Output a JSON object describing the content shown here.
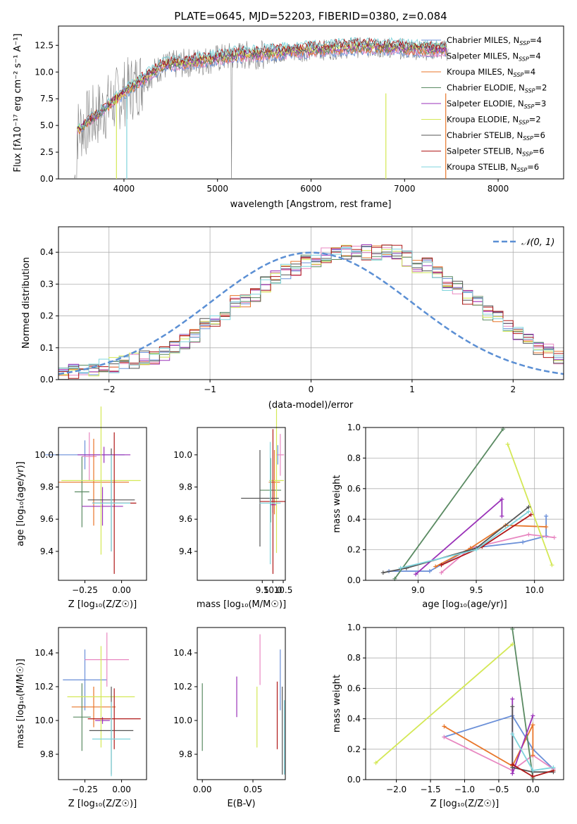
{
  "chart_data": [
    {
      "type": "line",
      "title": "PLATE=0645, MJD=52203, FIBERID=0380, z=0.084",
      "xlabel": "wavelength [Angstrom, rest frame]",
      "ylabel": "Flux [fλ10⁻¹⁷ erg cm⁻² s⁻¹ A⁻¹]",
      "xlim": [
        3300,
        8700
      ],
      "ylim": [
        0,
        14.3
      ],
      "xticks": [
        "4000",
        "5000",
        "6000",
        "7000",
        "8000"
      ],
      "yticks": [
        "0.0",
        "2.5",
        "5.0",
        "7.5",
        "10.0",
        "12.5"
      ],
      "legend_position": "right",
      "data_spectrum": {
        "name": "data",
        "color": "#808080"
      },
      "series": [
        {
          "name": "Chabrier MILES, N_SSP=4",
          "color": "#6a8fd8"
        },
        {
          "name": "Salpeter MILES, N_SSP=4",
          "color": "#e887c1"
        },
        {
          "name": "Kroupa MILES, N_SSP=4",
          "color": "#e8762a"
        },
        {
          "name": "Chabrier ELODIE, N_SSP=2",
          "color": "#5a8a62"
        },
        {
          "name": "Salpeter ELODIE, N_SSP=3",
          "color": "#9a32b8"
        },
        {
          "name": "Kroupa ELODIE, N_SSP=2",
          "color": "#d4e856"
        },
        {
          "name": "Chabrier STELIB, N_SSP=6",
          "color": "#555555"
        },
        {
          "name": "Salpeter STELIB, N_SSP=6",
          "color": "#b01818"
        },
        {
          "name": "Kroupa STELIB, N_SSP=6",
          "color": "#7fd4dc"
        }
      ],
      "legend_labels": [
        {
          "main": "Chabrier MILES, N",
          "sub": "SSP",
          "tail": "=4"
        },
        {
          "main": "Salpeter MILES, N",
          "sub": "SSP",
          "tail": "=4"
        },
        {
          "main": "Kroupa MILES, N",
          "sub": "SSP",
          "tail": "=4"
        },
        {
          "main": "Chabrier ELODIE, N",
          "sub": "SSP",
          "tail": "=2"
        },
        {
          "main": "Salpeter ELODIE, N",
          "sub": "SSP",
          "tail": "=3"
        },
        {
          "main": "Kroupa ELODIE, N",
          "sub": "SSP",
          "tail": "=2"
        },
        {
          "main": "Chabrier STELIB, N",
          "sub": "SSP",
          "tail": "=6"
        },
        {
          "main": "Salpeter STELIB, N",
          "sub": "SSP",
          "tail": "=6"
        },
        {
          "main": "Kroupa STELIB, N",
          "sub": "SSP",
          "tail": "=6"
        }
      ]
    },
    {
      "type": "histogram",
      "xlabel": "(data-model)/error",
      "ylabel": "Normed distribution",
      "xlim": [
        -2.5,
        2.5
      ],
      "ylim": [
        0,
        0.48
      ],
      "xticks": [
        "−2",
        "−1",
        "0",
        "1",
        "2"
      ],
      "yticks": [
        "0.0",
        "0.1",
        "0.2",
        "0.3",
        "0.4"
      ],
      "grid": true,
      "legend_position": "top-right",
      "legend": "𝒩(0, 1)",
      "reference_curve": {
        "name": "N(0,1)",
        "color": "#5b8fd4",
        "style": "dashed"
      },
      "bin_width": 0.1,
      "bin_start": -2.5,
      "approx_density": [
        0.02,
        0.025,
        0.03,
        0.035,
        0.04,
        0.045,
        0.05,
        0.06,
        0.07,
        0.07,
        0.08,
        0.1,
        0.12,
        0.14,
        0.17,
        0.19,
        0.21,
        0.24,
        0.25,
        0.27,
        0.3,
        0.32,
        0.34,
        0.35,
        0.37,
        0.37,
        0.39,
        0.4,
        0.4,
        0.41,
        0.4,
        0.4,
        0.41,
        0.4,
        0.38,
        0.36,
        0.36,
        0.34,
        0.3,
        0.29,
        0.26,
        0.24,
        0.21,
        0.19,
        0.17,
        0.14,
        0.12,
        0.1,
        0.09,
        0.07
      ]
    },
    {
      "type": "errorbar",
      "xlabel": "Z [log₁₀(Z/Z☉)]",
      "ylabel": "age  [log₁₀(age/yr)]",
      "xlim": [
        -0.43,
        0.17
      ],
      "ylim": [
        9.22,
        10.17
      ],
      "xticks": [
        "−0.25",
        "0.00"
      ],
      "yticks": [
        "9.4",
        "9.6",
        "9.8",
        "10.0"
      ],
      "points": [
        {
          "series": "Chabrier MILES",
          "x": -0.25,
          "y": 10.0,
          "xerr": 0.27,
          "yerr": 0.09
        },
        {
          "series": "Salpeter MILES",
          "x": -0.22,
          "y": 9.99,
          "xerr": 0.05,
          "yerr": 0.15
        },
        {
          "series": "Kroupa MILES",
          "x": -0.19,
          "y": 9.83,
          "xerr": 0.24,
          "yerr": 0.27
        },
        {
          "series": "Chabrier ELODIE",
          "x": -0.27,
          "y": 9.77,
          "xerr": 0.05,
          "yerr": 0.22
        },
        {
          "series": "Salpeter ELODIE",
          "x": -0.12,
          "y": 10.0,
          "xerr": 0.18,
          "yerr": 0.05
        },
        {
          "series": "Salpeter ELODIE",
          "x": -0.13,
          "y": 9.68,
          "xerr": 0.14,
          "yerr": 0.12
        },
        {
          "series": "Kroupa ELODIE",
          "x": -0.14,
          "y": 9.84,
          "xerr": 0.27,
          "yerr": 0.46
        },
        {
          "series": "Chabrier STELIB",
          "x": -0.07,
          "y": 9.72,
          "xerr": 0.16,
          "yerr": 0.32
        },
        {
          "series": "Salpeter STELIB",
          "x": -0.05,
          "y": 9.7,
          "xerr": 0.15,
          "yerr": 0.44
        },
        {
          "series": "Kroupa STELIB",
          "x": -0.07,
          "y": 9.7,
          "xerr": 0.13,
          "yerr": 0.3
        }
      ]
    },
    {
      "type": "errorbar",
      "xlabel": "mass [log₁₀(M/M☉)]",
      "ylabel": "",
      "xlim": [
        6.4,
        10.6
      ],
      "ylim": [
        9.22,
        10.17
      ],
      "xticks": [
        "7.5",
        "10.0",
        "12.5",
        "15.0",
        "17.5",
        "20.0",
        "22.5",
        "25.0",
        "27.5",
        "30.0",
        "32.5",
        "9.5",
        "10.0",
        "10.5"
      ],
      "xticks_visible": [
        "9.5",
        "10.0",
        "10.5"
      ],
      "yticks": [
        "9.4",
        "9.6",
        "9.8",
        "10.0"
      ],
      "points": [
        {
          "series": "Chabrier MILES",
          "x": 10.24,
          "y": 10.0,
          "xerr": 0.05,
          "yerr": 0.06
        },
        {
          "series": "Salpeter MILES",
          "x": 10.36,
          "y": 10.0,
          "xerr": 0.18,
          "yerr": 0.13
        },
        {
          "series": "Kroupa MILES",
          "x": 10.08,
          "y": 9.83,
          "xerr": 0.27,
          "yerr": 0.2
        },
        {
          "series": "Chabrier ELODIE",
          "x": 9.9,
          "y": 9.78,
          "xerr": 0.5,
          "yerr": 0.2
        },
        {
          "series": "Salpeter ELODIE",
          "x": 10.01,
          "y": 9.69,
          "xerr": 0.15,
          "yerr": 0.05
        },
        {
          "series": "Kroupa ELODIE",
          "x": 10.18,
          "y": 9.84,
          "xerr": 0.35,
          "yerr": 0.45
        },
        {
          "series": "Chabrier STELIB",
          "x": 9.39,
          "y": 9.73,
          "xerr": 0.9,
          "yerr": 0.3
        },
        {
          "series": "Salpeter STELIB",
          "x": 10.01,
          "y": 9.71,
          "xerr": 0.6,
          "yerr": 0.45
        },
        {
          "series": "Kroupa STELIB",
          "x": 9.88,
          "y": 9.7,
          "xerr": 0.5,
          "yerr": 0.38
        }
      ]
    },
    {
      "type": "line",
      "xlabel": "age  [log₁₀(age/yr)]",
      "ylabel": "mass weight",
      "xlim": [
        8.55,
        10.25
      ],
      "ylim": [
        0,
        1.0
      ],
      "xticks": [
        "9.0",
        "9.5",
        "10.0"
      ],
      "yticks": [
        "0.0",
        "0.2",
        "0.4",
        "0.6",
        "0.8",
        "1.0"
      ],
      "grid": true,
      "series": [
        {
          "name": "Chabrier MILES",
          "points": [
            [
              8.75,
              0.06
            ],
            [
              9.1,
              0.06
            ],
            [
              9.45,
              0.21
            ],
            [
              9.9,
              0.25
            ],
            [
              10.1,
              0.29
            ],
            [
              10.1,
              0.42
            ]
          ]
        },
        {
          "name": "Salpeter MILES",
          "points": [
            [
              9.2,
              0.05
            ],
            [
              9.45,
              0.21
            ],
            [
              9.95,
              0.3
            ],
            [
              10.17,
              0.28
            ]
          ]
        },
        {
          "name": "Kroupa MILES",
          "points": [
            [
              9.15,
              0.09
            ],
            [
              9.45,
              0.21
            ],
            [
              9.75,
              0.36
            ],
            [
              10.1,
              0.35
            ]
          ]
        },
        {
          "name": "Chabrier ELODIE",
          "points": [
            [
              8.8,
              0.01
            ],
            [
              9.73,
              0.99
            ]
          ]
        },
        {
          "name": "Salpeter ELODIE",
          "points": [
            [
              8.98,
              0.04
            ],
            [
              9.72,
              0.53
            ],
            [
              9.72,
              0.42
            ]
          ]
        },
        {
          "name": "Kroupa ELODIE",
          "points": [
            [
              9.77,
              0.89
            ],
            [
              10.15,
              0.1
            ]
          ]
        },
        {
          "name": "Chabrier STELIB",
          "points": [
            [
              8.7,
              0.05
            ],
            [
              8.9,
              0.08
            ],
            [
              9.5,
              0.21
            ],
            [
              9.95,
              0.48
            ]
          ]
        },
        {
          "name": "Salpeter STELIB",
          "points": [
            [
              9.2,
              0.1
            ],
            [
              9.55,
              0.22
            ],
            [
              9.97,
              0.43
            ]
          ]
        },
        {
          "name": "Kroupa STELIB",
          "points": [
            [
              8.85,
              0.08
            ],
            [
              9.5,
              0.2
            ],
            [
              9.95,
              0.45
            ]
          ]
        }
      ]
    },
    {
      "type": "errorbar",
      "xlabel": "Z [log₁₀(Z/Z☉)]",
      "ylabel": "mass [log₁₀(M/M☉)]",
      "xlim": [
        -0.43,
        0.17
      ],
      "ylim": [
        9.65,
        10.55
      ],
      "xticks": [
        "−0.25",
        "0.00"
      ],
      "yticks": [
        "9.8",
        "10.0",
        "10.2",
        "10.4"
      ],
      "points": [
        {
          "series": "Chabrier MILES",
          "x": -0.25,
          "y": 10.24,
          "xerr": 0.15,
          "yerr": 0.18
        },
        {
          "series": "Salpeter MILES",
          "x": -0.1,
          "y": 10.36,
          "xerr": 0.15,
          "yerr": 0.16
        },
        {
          "series": "Kroupa MILES",
          "x": -0.19,
          "y": 10.08,
          "xerr": 0.15,
          "yerr": 0.12
        },
        {
          "series": "Chabrier ELODIE",
          "x": -0.27,
          "y": 10.02,
          "xerr": 0.06,
          "yerr": 0.2
        },
        {
          "series": "Salpeter ELODIE",
          "x": -0.13,
          "y": 10.0,
          "xerr": 0.05,
          "yerr": 0.02
        },
        {
          "series": "Kroupa ELODIE",
          "x": -0.14,
          "y": 10.14,
          "xerr": 0.23,
          "yerr": 0.3
        },
        {
          "series": "Chabrier STELIB",
          "x": -0.07,
          "y": 9.94,
          "xerr": 0.15,
          "yerr": 0.26
        },
        {
          "series": "Salpeter STELIB",
          "x": -0.05,
          "y": 10.01,
          "xerr": 0.18,
          "yerr": 0.18
        },
        {
          "series": "Kroupa STELIB",
          "x": -0.07,
          "y": 9.89,
          "xerr": 0.13,
          "yerr": 0.22
        }
      ]
    },
    {
      "type": "errorbar",
      "xlabel": "E(B-V)",
      "ylabel": "",
      "xlim": [
        -0.005,
        0.082
      ],
      "ylim": [
        9.65,
        10.55
      ],
      "xticks": [
        "0.00",
        "0.05"
      ],
      "yticks": [
        "9.8",
        "10.0",
        "10.2",
        "10.4"
      ],
      "points": [
        {
          "series": "Chabrier MILES",
          "x": 0.077,
          "y": 10.24,
          "yerr": 0.18
        },
        {
          "series": "Salpeter MILES",
          "x": 0.057,
          "y": 10.36,
          "yerr": 0.15
        },
        {
          "series": "Chabrier ELODIE",
          "x": 0.0,
          "y": 10.02,
          "yerr": 0.2
        },
        {
          "series": "Salpeter ELODIE",
          "x": 0.034,
          "y": 10.14,
          "yerr": 0.12
        },
        {
          "series": "Kroupa ELODIE",
          "x": 0.054,
          "y": 10.02,
          "yerr": 0.18
        },
        {
          "series": "Chabrier STELIB",
          "x": 0.079,
          "y": 9.94,
          "yerr": 0.26
        },
        {
          "series": "Salpeter STELIB",
          "x": 0.074,
          "y": 10.03,
          "yerr": 0.2
        },
        {
          "series": "Kroupa STELIB",
          "x": 0.081,
          "y": 9.9,
          "yerr": 0.22
        }
      ]
    },
    {
      "type": "line",
      "xlabel": "Z [log₁₀(Z/Z☉)]",
      "ylabel": "mass weight",
      "xlim": [
        -2.45,
        0.45
      ],
      "ylim": [
        0,
        1.0
      ],
      "xticks": [
        "−2.0",
        "−1.5",
        "−1.0",
        "−0.5",
        "0.0"
      ],
      "yticks": [
        "0.0",
        "0.2",
        "0.4",
        "0.6",
        "0.8",
        "1.0"
      ],
      "grid": true,
      "series": [
        {
          "name": "Chabrier MILES",
          "points": [
            [
              -1.3,
              0.28
            ],
            [
              -0.3,
              0.42
            ],
            [
              0.0,
              0.2
            ],
            [
              0.3,
              0.07
            ]
          ]
        },
        {
          "name": "Salpeter MILES",
          "points": [
            [
              -1.3,
              0.28
            ],
            [
              -0.3,
              0.06
            ],
            [
              0.0,
              0.16
            ],
            [
              0.3,
              0.07
            ]
          ]
        },
        {
          "name": "Kroupa MILES",
          "points": [
            [
              -1.3,
              0.35
            ],
            [
              -0.3,
              0.09
            ],
            [
              0.0,
              0.36
            ],
            [
              0.0,
              0.16
            ]
          ]
        },
        {
          "name": "Chabrier ELODIE",
          "points": [
            [
              -0.3,
              0.99
            ],
            [
              0.0,
              0.01
            ]
          ]
        },
        {
          "name": "Salpeter ELODIE",
          "points": [
            [
              -0.3,
              0.53
            ],
            [
              -0.3,
              0.04
            ],
            [
              0.0,
              0.42
            ]
          ]
        },
        {
          "name": "Kroupa ELODIE",
          "points": [
            [
              -2.3,
              0.11
            ],
            [
              -0.3,
              0.89
            ]
          ]
        },
        {
          "name": "Chabrier STELIB",
          "points": [
            [
              -0.3,
              0.48
            ],
            [
              -0.3,
              0.08
            ],
            [
              0.0,
              0.05
            ],
            [
              0.3,
              0.05
            ]
          ]
        },
        {
          "name": "Salpeter STELIB",
          "points": [
            [
              -0.3,
              0.1
            ],
            [
              0.0,
              0.02
            ],
            [
              0.3,
              0.06
            ]
          ]
        },
        {
          "name": "Kroupa STELIB",
          "points": [
            [
              -0.3,
              0.3
            ],
            [
              0.0,
              0.06
            ],
            [
              0.3,
              0.08
            ]
          ]
        }
      ]
    }
  ]
}
